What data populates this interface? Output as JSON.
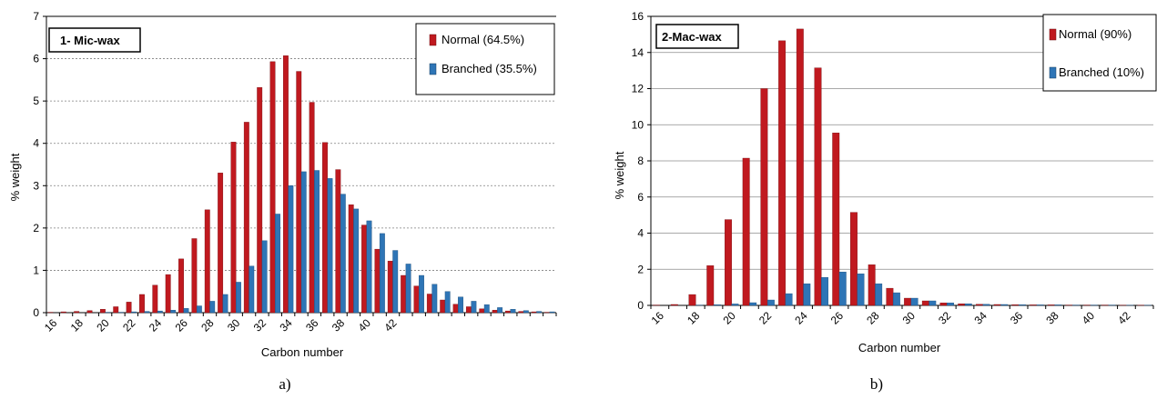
{
  "chart_data": [
    {
      "type": "bar",
      "title": "1- Mic-wax",
      "xlabel": "Carbon number",
      "ylabel": "% weight",
      "ylim": [
        0,
        7
      ],
      "yticks": [
        0,
        1,
        2,
        3,
        4,
        5,
        6,
        7
      ],
      "x": [
        16,
        17,
        18,
        19,
        20,
        21,
        22,
        23,
        24,
        25,
        26,
        27,
        28,
        29,
        30,
        31,
        32,
        33,
        34,
        35,
        36,
        37,
        38,
        39,
        40,
        41,
        42,
        43,
        44,
        45,
        46,
        47,
        48,
        49,
        50,
        51,
        52,
        53,
        54
      ],
      "xtick_labels": [
        "16",
        "18",
        "20",
        "22",
        "24",
        "26",
        "28",
        "30",
        "32",
        "34",
        "36",
        "38",
        "40",
        "42"
      ],
      "grid": "horizontal dotted",
      "legend_position": "top-right",
      "series": [
        {
          "name": "Normal (64.5%)",
          "color": "#c0191f",
          "values": [
            0.01,
            0.02,
            0.03,
            0.05,
            0.08,
            0.14,
            0.25,
            0.43,
            0.65,
            0.9,
            1.27,
            1.75,
            2.43,
            3.3,
            4.03,
            4.5,
            5.32,
            5.93,
            6.07,
            5.7,
            4.97,
            4.02,
            3.38,
            2.55,
            2.07,
            1.5,
            1.22,
            0.88,
            0.63,
            0.44,
            0.3,
            0.2,
            0.14,
            0.09,
            0.06,
            0.04,
            0.03,
            0.02,
            0.01
          ]
        },
        {
          "name": "Branched (35.5%)",
          "color": "#2e75b6",
          "values": [
            0.0,
            0.0,
            0.0,
            0.0,
            0.01,
            0.01,
            0.02,
            0.03,
            0.04,
            0.06,
            0.1,
            0.16,
            0.27,
            0.43,
            0.72,
            1.1,
            1.7,
            2.33,
            3.0,
            3.33,
            3.36,
            3.17,
            2.8,
            2.45,
            2.17,
            1.87,
            1.47,
            1.15,
            0.88,
            0.67,
            0.5,
            0.37,
            0.27,
            0.19,
            0.12,
            0.08,
            0.05,
            0.03,
            0.02
          ]
        }
      ],
      "caption": "a)"
    },
    {
      "type": "bar",
      "title": "2-Mac-wax",
      "xlabel": "Carbon number",
      "ylabel": "% weight",
      "ylim": [
        0,
        16
      ],
      "yticks": [
        0,
        2,
        4,
        6,
        8,
        10,
        12,
        14,
        16
      ],
      "x": [
        16,
        17,
        18,
        19,
        20,
        21,
        22,
        23,
        24,
        25,
        26,
        27,
        28,
        29,
        30,
        31,
        32,
        33,
        34,
        35,
        36,
        37,
        38,
        39,
        40,
        41,
        42,
        43
      ],
      "xtick_labels": [
        "16",
        "18",
        "20",
        "22",
        "24",
        "26",
        "28",
        "30",
        "32",
        "34",
        "36",
        "38",
        "40",
        "42"
      ],
      "grid": "horizontal solid",
      "legend_position": "top-right",
      "series": [
        {
          "name": "Normal (90%)",
          "color": "#c0191f",
          "values": [
            0.02,
            0.05,
            0.6,
            2.2,
            4.75,
            8.15,
            12.0,
            14.65,
            15.3,
            13.15,
            9.55,
            5.15,
            2.25,
            0.95,
            0.4,
            0.25,
            0.14,
            0.09,
            0.06,
            0.05,
            0.04,
            0.03,
            0.03,
            0.02,
            0.02,
            0.02,
            0.01,
            0.01
          ]
        },
        {
          "name": "Branched (10%)",
          "color": "#2e75b6",
          "values": [
            0.0,
            0.0,
            0.02,
            0.04,
            0.08,
            0.15,
            0.3,
            0.65,
            1.2,
            1.55,
            1.85,
            1.75,
            1.2,
            0.7,
            0.4,
            0.25,
            0.14,
            0.09,
            0.06,
            0.05,
            0.04,
            0.03,
            0.03,
            0.02,
            0.02,
            0.02,
            0.01,
            0.01
          ]
        }
      ],
      "caption": "b)"
    }
  ]
}
